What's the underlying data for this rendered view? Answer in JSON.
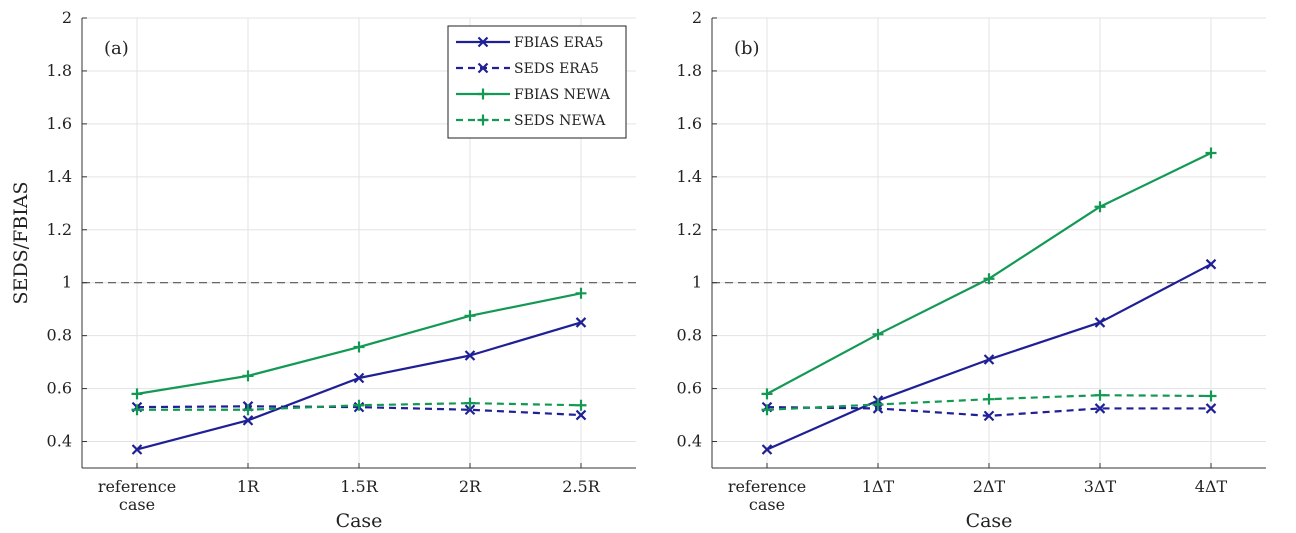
{
  "colors": {
    "era5": "#1f1f96",
    "newa": "#149955",
    "grid": "#e3e3e3",
    "axis": "#333333",
    "refline": "#555555"
  },
  "chart_data": [
    {
      "type": "line",
      "panel_label": "(a)",
      "categories": [
        "reference case",
        "1R",
        "1.5R",
        "2R",
        "2.5R"
      ],
      "ylabel": "SEDS/FBIAS",
      "xlabel": "Case",
      "ylim": [
        0.3,
        2
      ],
      "yticks": [
        "0.4",
        "0.6",
        "0.8",
        "1",
        "1.2",
        "1.4",
        "1.6",
        "1.8",
        "2"
      ],
      "reference_line": 1,
      "grid": true,
      "legend_position": "top-right",
      "series": [
        {
          "name": "FBIAS ERA5",
          "color": "era5",
          "dash": "solid",
          "marker": "x",
          "values": [
            0.37,
            0.48,
            0.64,
            0.725,
            0.85
          ]
        },
        {
          "name": "SEDS ERA5",
          "color": "era5",
          "dash": "dashed",
          "marker": "x",
          "values": [
            0.53,
            0.533,
            0.53,
            0.52,
            0.5
          ]
        },
        {
          "name": "FBIAS NEWA",
          "color": "newa",
          "dash": "solid",
          "marker": "+",
          "values": [
            0.58,
            0.648,
            0.757,
            0.875,
            0.96
          ]
        },
        {
          "name": "SEDS NEWA",
          "color": "newa",
          "dash": "dashed",
          "marker": "+",
          "values": [
            0.52,
            0.52,
            0.537,
            0.545,
            0.537
          ]
        }
      ]
    },
    {
      "type": "line",
      "panel_label": "(b)",
      "categories": [
        "reference case",
        "1ΔT",
        "2ΔT",
        "3ΔT",
        "4ΔT"
      ],
      "ylabel": "",
      "xlabel": "Case",
      "ylim": [
        0.3,
        2
      ],
      "yticks": [
        "0.4",
        "0.6",
        "0.8",
        "1",
        "1.2",
        "1.4",
        "1.6",
        "1.8",
        "2"
      ],
      "reference_line": 1,
      "grid": true,
      "legend_position": "",
      "series": [
        {
          "name": "FBIAS ERA5",
          "color": "era5",
          "dash": "solid",
          "marker": "x",
          "values": [
            0.37,
            0.555,
            0.71,
            0.85,
            1.07
          ]
        },
        {
          "name": "SEDS ERA5",
          "color": "era5",
          "dash": "dashed",
          "marker": "x",
          "values": [
            0.53,
            0.525,
            0.497,
            0.525,
            0.525
          ]
        },
        {
          "name": "FBIAS NEWA",
          "color": "newa",
          "dash": "solid",
          "marker": "+",
          "values": [
            0.58,
            0.805,
            1.015,
            1.287,
            1.49
          ]
        },
        {
          "name": "SEDS NEWA",
          "color": "newa",
          "dash": "dashed",
          "marker": "+",
          "values": [
            0.52,
            0.54,
            0.56,
            0.575,
            0.572
          ]
        }
      ]
    }
  ]
}
